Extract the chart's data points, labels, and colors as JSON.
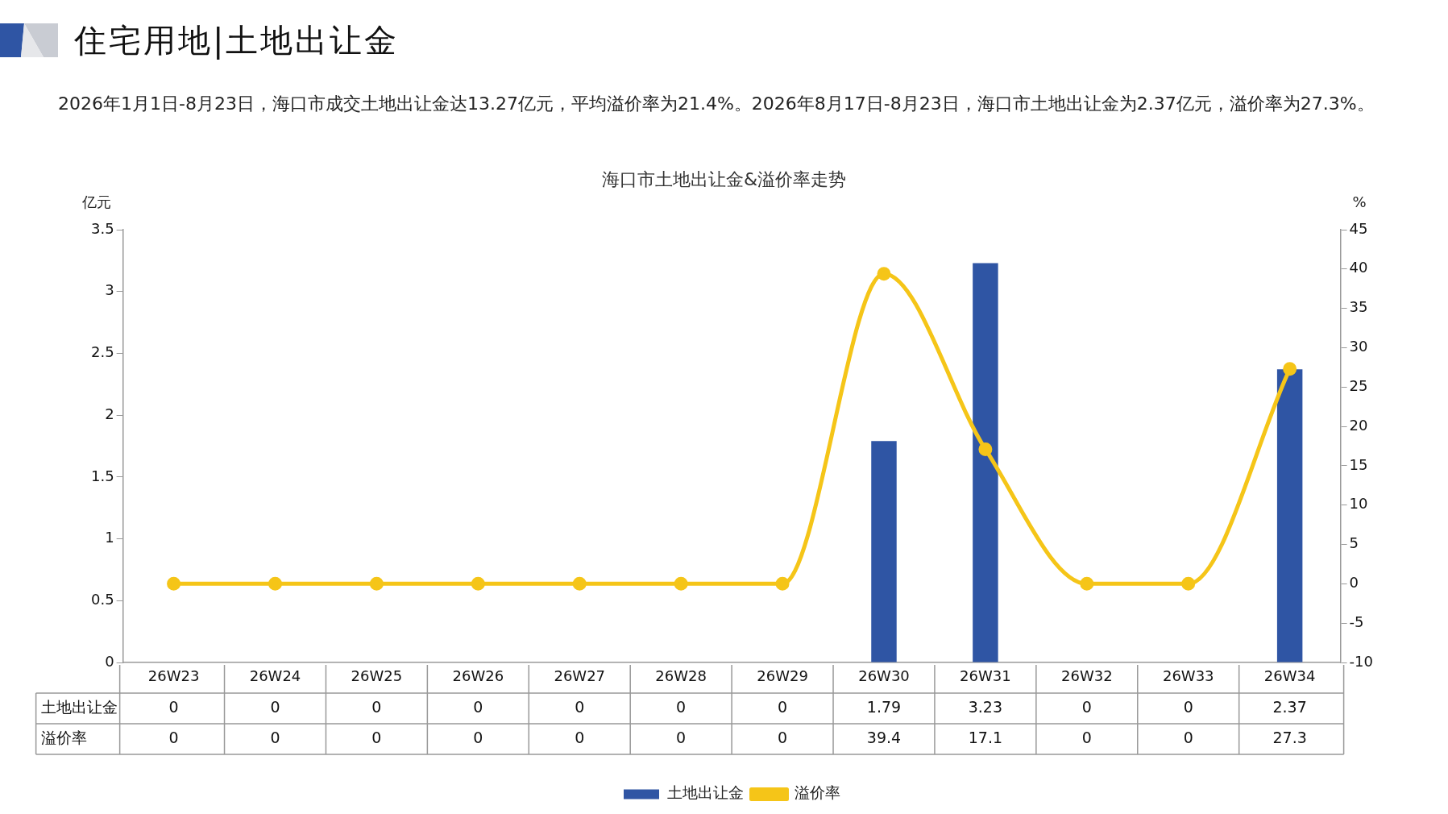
{
  "chart_data": {
    "type": "bar",
    "title": "海口市土地出让金&溢价率走势",
    "subtitle": "2026年1月1日-8月23日，海口市成交土地出让金达13.27亿元，平均溢价率为21.4%。2026年8月17日-8月23日，海口市土地出让金为2.37亿元，溢价率为27.3%。",
    "annotations": [
      "住宅用地|土地出让金"
    ],
    "xlabel": null,
    "ylabel": "亿元",
    "y2label": "%",
    "categories": [
      "26W23",
      "26W24",
      "26W25",
      "26W26",
      "26W27",
      "26W28",
      "26W29",
      "26W30",
      "26W31",
      "26W32",
      "26W33",
      "26W34"
    ],
    "series": [
      {
        "name": "土地出让金",
        "color": "#2f55a4",
        "values": [
          0,
          0,
          0,
          0,
          0,
          0,
          0,
          1.79,
          3.23,
          0,
          0,
          2.37
        ]
      },
      {
        "name": "溢价率",
        "type": "line",
        "axis": "y2",
        "color": "#f5c518",
        "marker": "circle",
        "values": [
          0,
          0,
          0,
          0,
          0,
          0,
          0,
          39.4,
          17.1,
          0,
          0,
          27.3
        ]
      }
    ],
    "ylim": [
      0,
      3.5
    ],
    "yticks": [
      0,
      0.5,
      1,
      1.5,
      2,
      2.5,
      3,
      3.5
    ],
    "y2lim": [
      -10,
      45
    ],
    "y2ticks": [
      -10,
      -5,
      0,
      5,
      10,
      15,
      20,
      25,
      30,
      35,
      40,
      45
    ],
    "data_labels": true,
    "grid": false,
    "legend": "bottom"
  }
}
